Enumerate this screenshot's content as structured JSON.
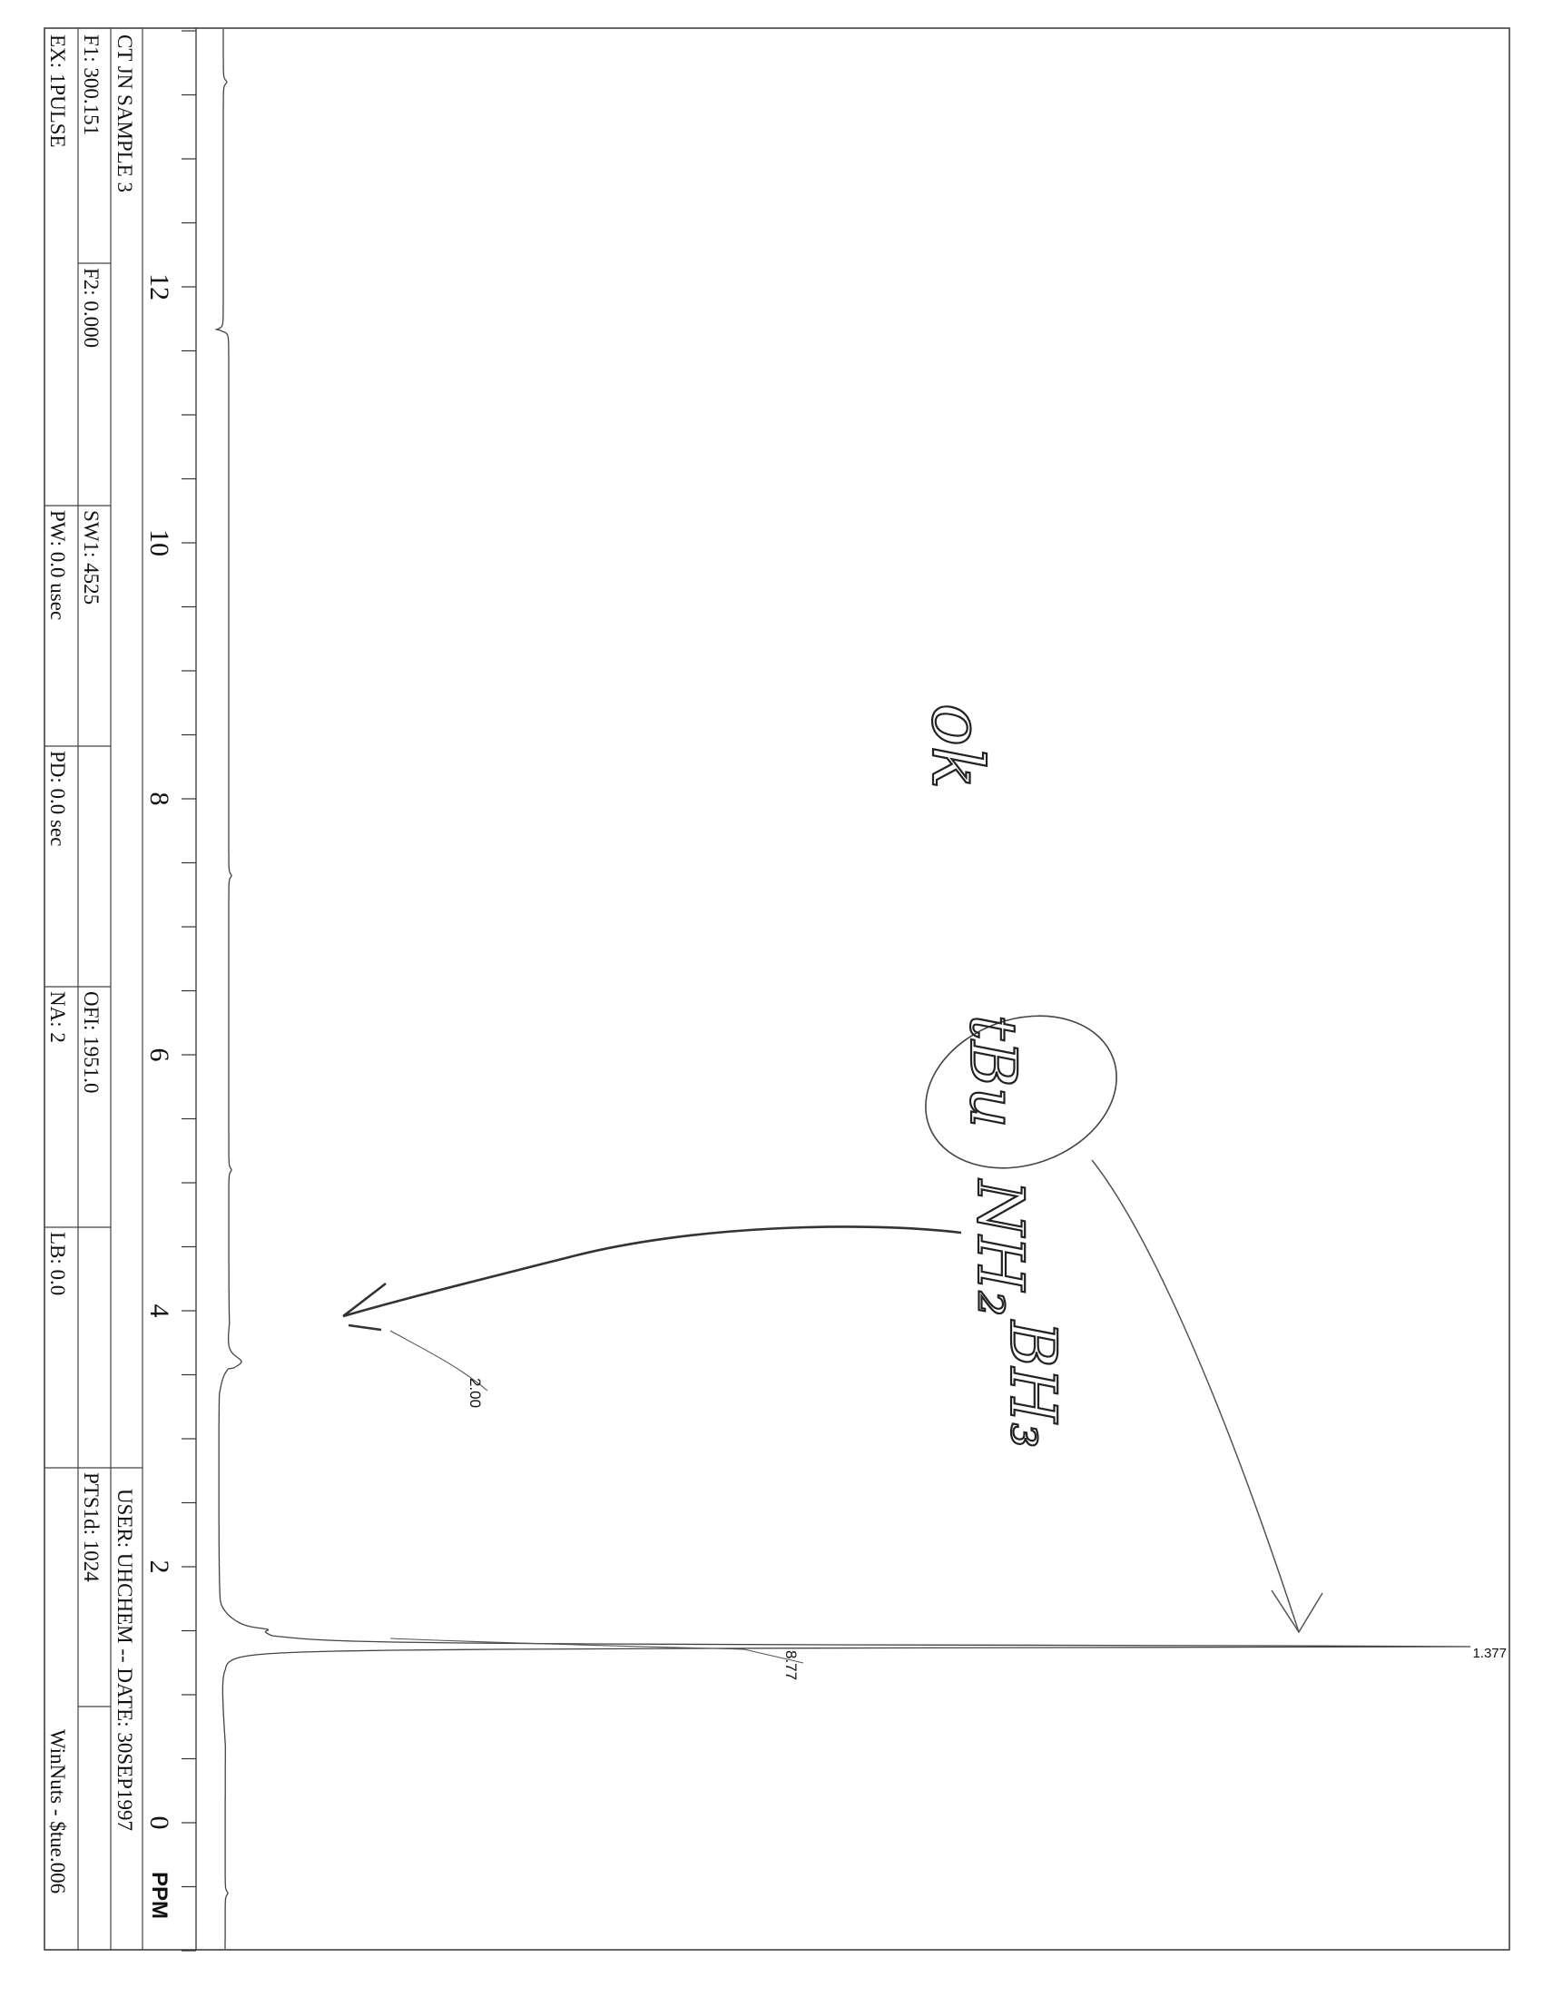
{
  "header": {
    "title": "CT JN SAMPLE 3",
    "user_date": "USER: UHCHEM -- DATE:  30SEP1997",
    "params_row1": [
      "F1: 300.151",
      "F2: 0.000",
      "SW1: 4525",
      "OFI: 1951.0",
      "PTS1d: 1024"
    ],
    "params_row2": [
      "EX: 1PULSE",
      "PW: 0.0  usec",
      "PD: 0.0  sec",
      "NA: 2",
      "LB: 0.0",
      "WinNuts - $tue.006"
    ]
  },
  "handwritten": {
    "note": "ok",
    "compound": [
      "tBu",
      "NH₂",
      "BH₃"
    ]
  },
  "chart_data": {
    "type": "line",
    "title": "",
    "xlabel": "PPM",
    "ylabel": "",
    "xlim": [
      14.05,
      -1.1
    ],
    "x_reversed": true,
    "x_ticks": [
      12,
      10,
      8,
      6,
      4,
      2,
      0
    ],
    "x_tick_labels": [
      "12",
      "10",
      "8",
      "6",
      "4",
      "2",
      "0"
    ],
    "minor_tick_step": 0.5,
    "grid": false,
    "peak_labels": [
      {
        "ppm": 1.377,
        "label": "1.377"
      }
    ],
    "integrals": [
      {
        "from_ppm": 3.9,
        "to_ppm": 3.3,
        "label": "2.00"
      },
      {
        "from_ppm": 1.7,
        "to_ppm": 1.2,
        "label": "8.77"
      }
    ],
    "signals": [
      {
        "ppm": 1.377,
        "relative_intensity": 1.0
      },
      {
        "ppm": 1.5,
        "relative_intensity": 0.02
      },
      {
        "ppm": 3.6,
        "relative_intensity": 0.015
      },
      {
        "ppm": 11.66,
        "relative_intensity": 0.006
      },
      {
        "ppm": 13.6,
        "relative_intensity": 0.003
      },
      {
        "ppm": 7.4,
        "relative_intensity": 0.003
      }
    ]
  }
}
